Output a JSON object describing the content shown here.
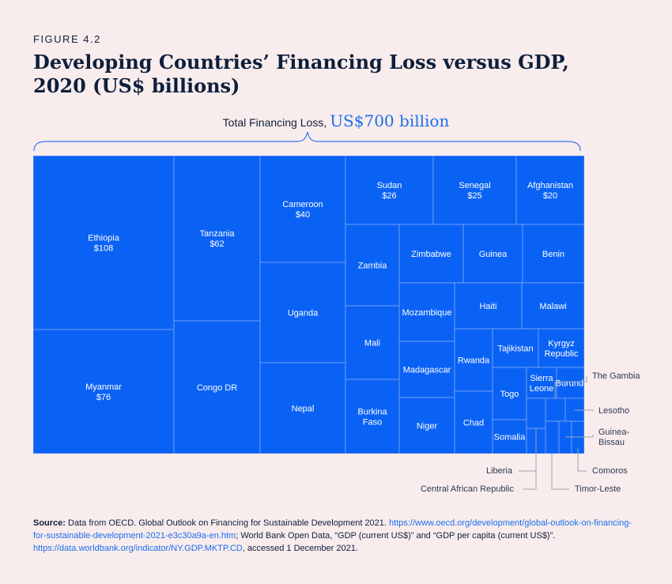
{
  "figure_label": "FIGURE 4.2",
  "title": "Developing Countries’ Financing Loss versus GDP, 2020 (US$ billions)",
  "total": {
    "label": "Total Financing Loss,",
    "value": "US$700 billion"
  },
  "colors": {
    "tile": "#0a62f5",
    "accent": "#1a6ff0",
    "text": "#0d1f3c",
    "background": "#f9ecec"
  },
  "chart_data": {
    "type": "treemap",
    "unit": "US$ billions",
    "total": 700,
    "items": [
      {
        "name": "Ethiopia",
        "value": 108,
        "label": "$108"
      },
      {
        "name": "Myanmar",
        "value": 76,
        "label": "$76"
      },
      {
        "name": "Tanzania",
        "value": 62,
        "label": "$62"
      },
      {
        "name": "Congo DR",
        "value": null
      },
      {
        "name": "Cameroon",
        "value": 40,
        "label": "$40"
      },
      {
        "name": "Uganda",
        "value": null
      },
      {
        "name": "Nepal",
        "value": null
      },
      {
        "name": "Sudan",
        "value": 26,
        "label": "$26"
      },
      {
        "name": "Senegal",
        "value": 25,
        "label": "$25"
      },
      {
        "name": "Afghanistan",
        "value": 20,
        "label": "$20"
      },
      {
        "name": "Zambia",
        "value": null
      },
      {
        "name": "Mali",
        "value": null
      },
      {
        "name": "Burkina Faso",
        "value": null
      },
      {
        "name": "Zimbabwe",
        "value": null
      },
      {
        "name": "Guinea",
        "value": null
      },
      {
        "name": "Benin",
        "value": null
      },
      {
        "name": "Mozambique",
        "value": null
      },
      {
        "name": "Haiti",
        "value": null
      },
      {
        "name": "Malawi",
        "value": null
      },
      {
        "name": "Madagascar",
        "value": null
      },
      {
        "name": "Rwanda",
        "value": null
      },
      {
        "name": "Tajikistan",
        "value": null
      },
      {
        "name": "Kyrgyz Republic",
        "value": null
      },
      {
        "name": "Niger",
        "value": null
      },
      {
        "name": "Chad",
        "value": null
      },
      {
        "name": "Togo",
        "value": null
      },
      {
        "name": "Sierra Leone",
        "value": null
      },
      {
        "name": "Burundi",
        "value": null
      },
      {
        "name": "Somalia",
        "value": null
      },
      {
        "name": "The Gambia",
        "value": null
      },
      {
        "name": "Lesotho",
        "value": null
      },
      {
        "name": "Guinea-Bissau",
        "value": null
      },
      {
        "name": "Comoros",
        "value": null
      },
      {
        "name": "Timor-Leste",
        "value": null
      },
      {
        "name": "Central African Republic",
        "value": null
      },
      {
        "name": "Liberia",
        "value": null
      }
    ]
  },
  "source": {
    "prefix": "Source:",
    "text1": "Data from OECD. Global Outlook on Financing for Sustainable Development 2021.",
    "link1": "https://www.oecd.org/development/global-outlook-on-financing-for-sustainable-development-2021-e3c30a9a-en.htm",
    "text2": "; World Bank Open Data, “GDP (current US$)” and “GDP per capita (current US$)”.",
    "link2": "https://data.worldbank.org/indicator/NY.GDP.MKTP.CD",
    "text3": ", accessed 1 December 2021."
  }
}
